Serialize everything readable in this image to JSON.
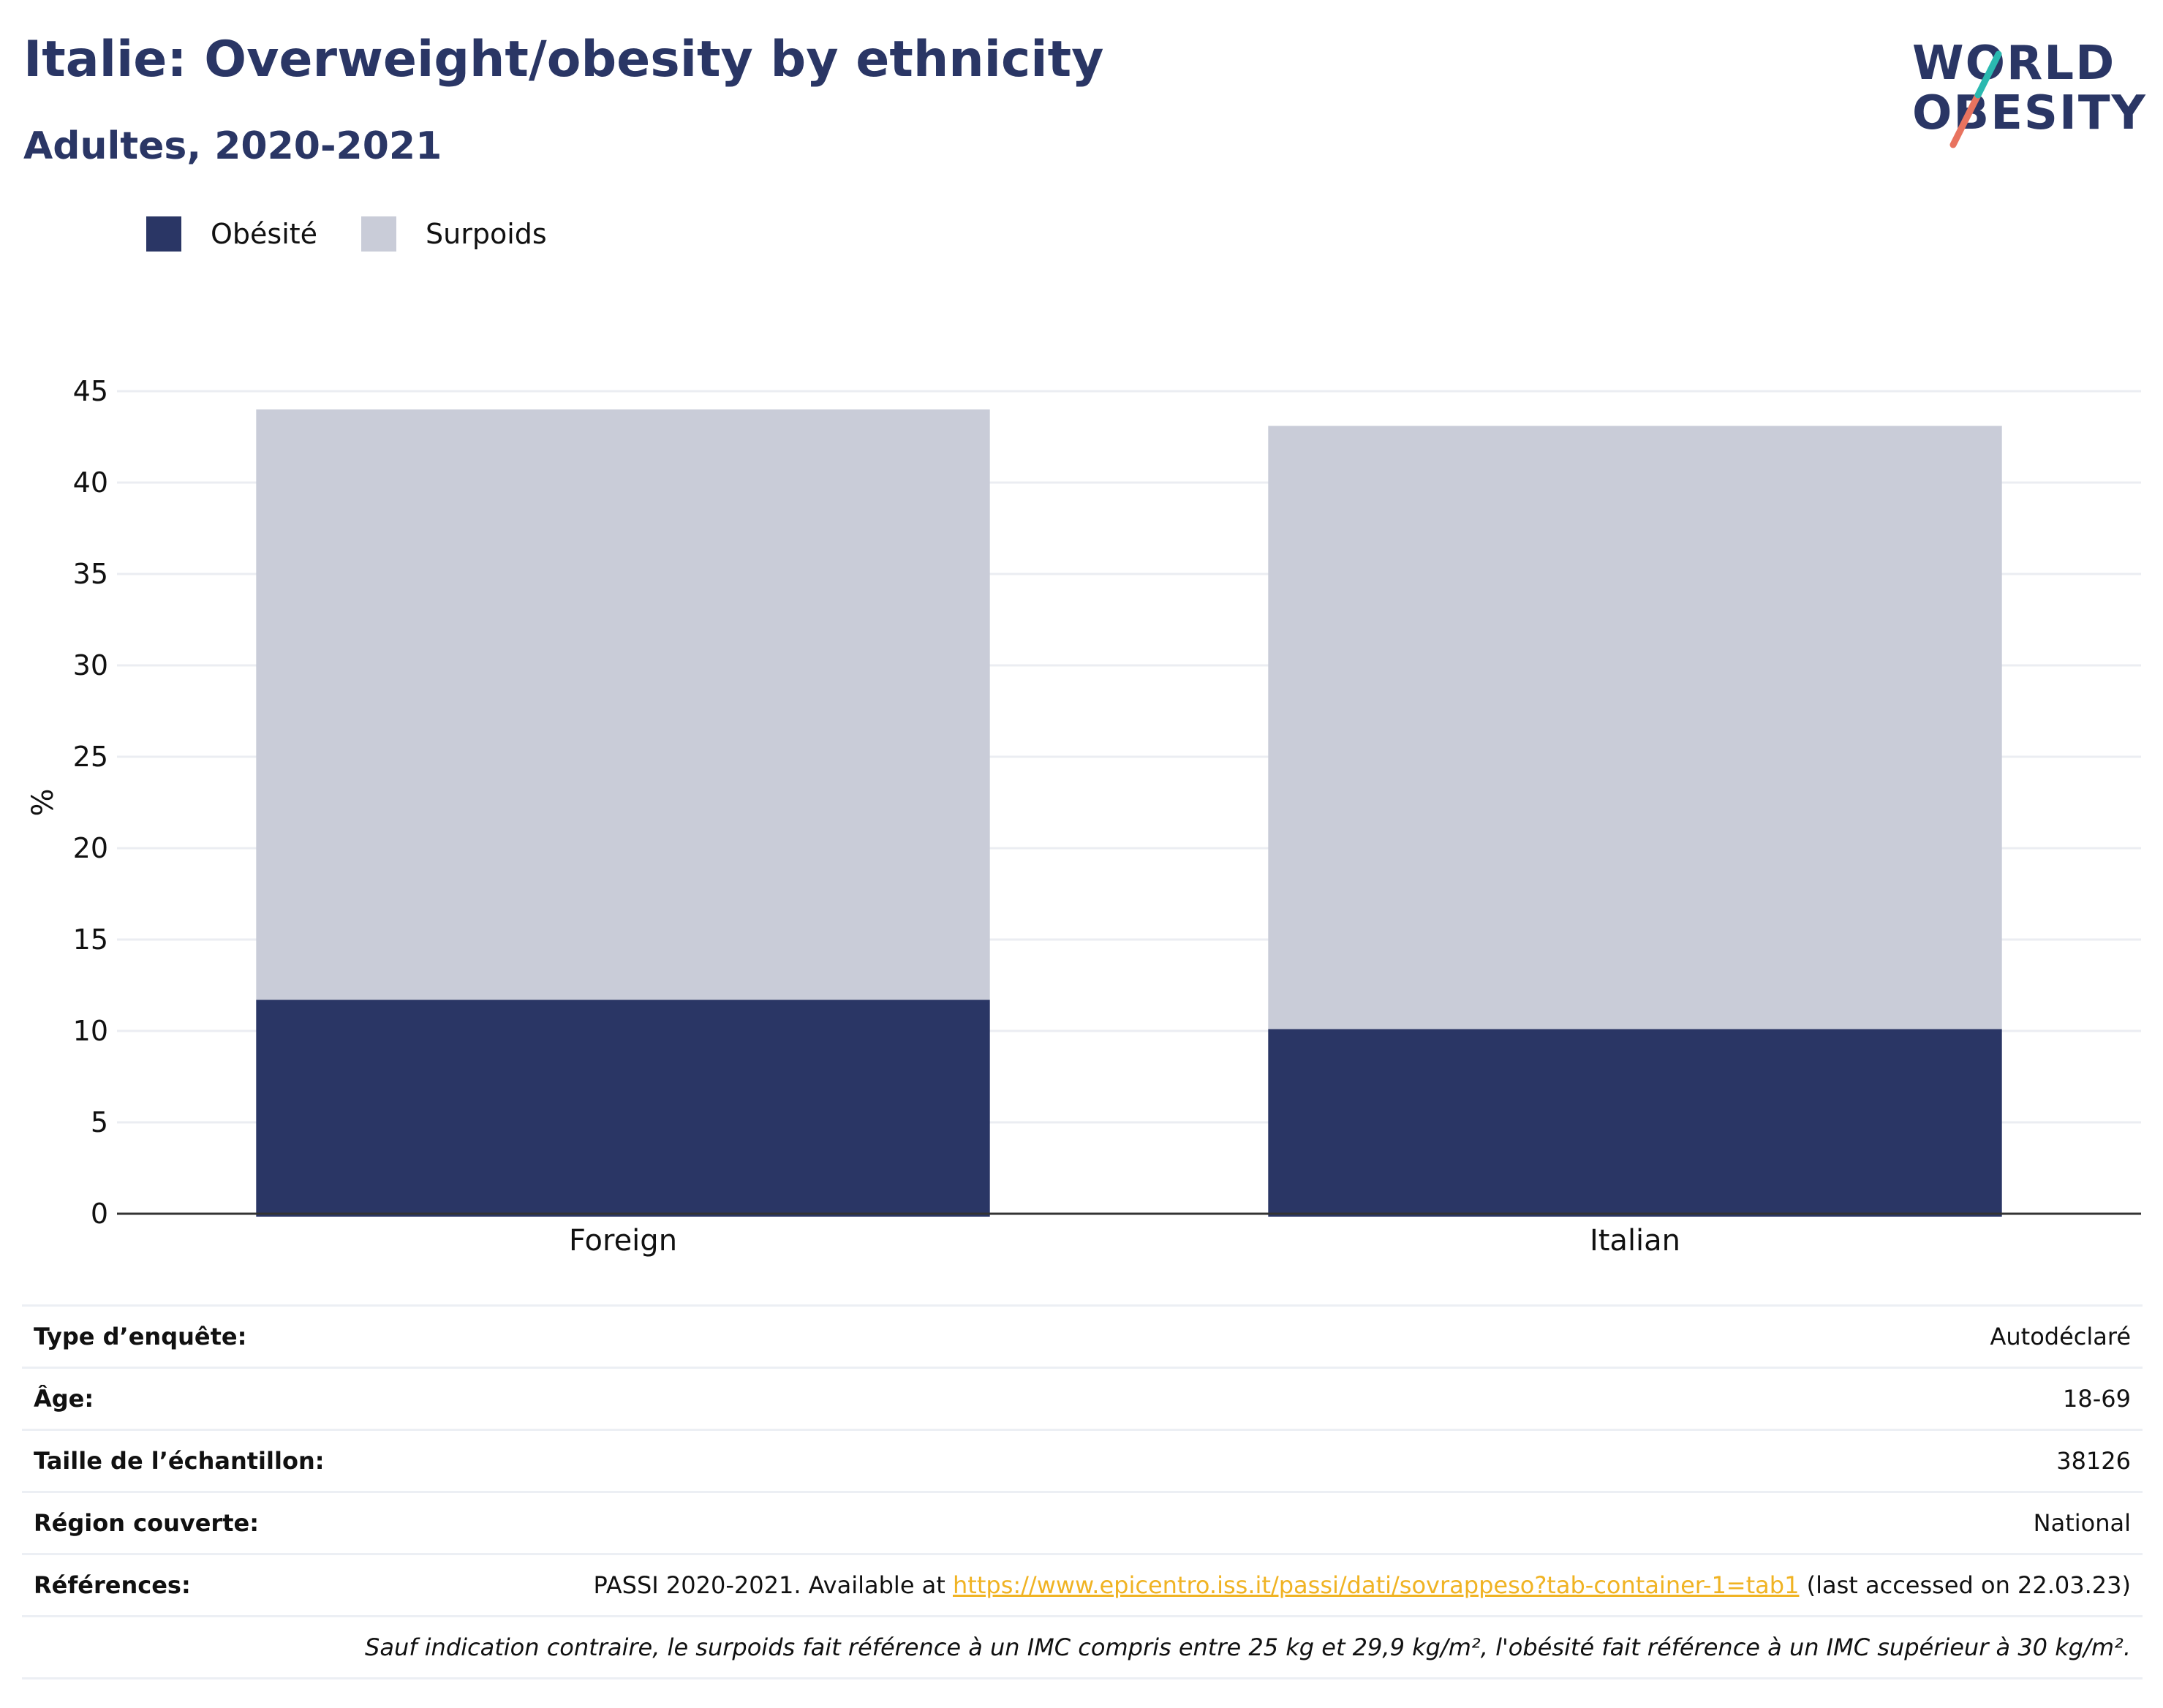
{
  "header": {
    "title": "Italie: Overweight/obesity by ethnicity",
    "subtitle": "Adultes, 2020-2021",
    "logo_line1": "WORLD",
    "logo_line2": "OBESITY"
  },
  "legend": {
    "items": [
      {
        "label": "Obésité",
        "color": "#2a3665"
      },
      {
        "label": "Surpoids",
        "color": "#c9ccd8"
      }
    ]
  },
  "chart_data": {
    "type": "bar",
    "stacked": true,
    "categories": [
      "Foreign",
      "Italian"
    ],
    "series": [
      {
        "name": "Obésité",
        "color": "#2a3665",
        "values": [
          11.7,
          10.1
        ]
      },
      {
        "name": "Surpoids",
        "color": "#c9ccd8",
        "values": [
          32.3,
          33.0
        ]
      }
    ],
    "ylabel": "%",
    "ylim": [
      0,
      45
    ],
    "yticks": [
      0,
      5,
      10,
      15,
      20,
      25,
      30,
      35,
      40,
      45
    ],
    "grid": true
  },
  "info": {
    "survey_type_label": "Type d’enquête:",
    "survey_type_value": "Autodéclaré",
    "age_label": "Âge:",
    "age_value": "18-69",
    "sample_label": "Taille de l’échantillon:",
    "sample_value": "38126",
    "region_label": "Région couverte:",
    "region_value": "National",
    "refs_label": "Références:",
    "refs_prefix": "PASSI 2020-2021. Available at ",
    "refs_link": "https://www.epicentro.iss.it/passi/dati/sovrappeso?tab-container-1=tab1",
    "refs_suffix": " (last accessed on 22.03.23)",
    "note": "Sauf indication contraire, le surpoids fait référence à un IMC compris entre 25 kg et 29,9 kg/m², l'obésité fait référence à un IMC supérieur à 30 kg/m²."
  }
}
